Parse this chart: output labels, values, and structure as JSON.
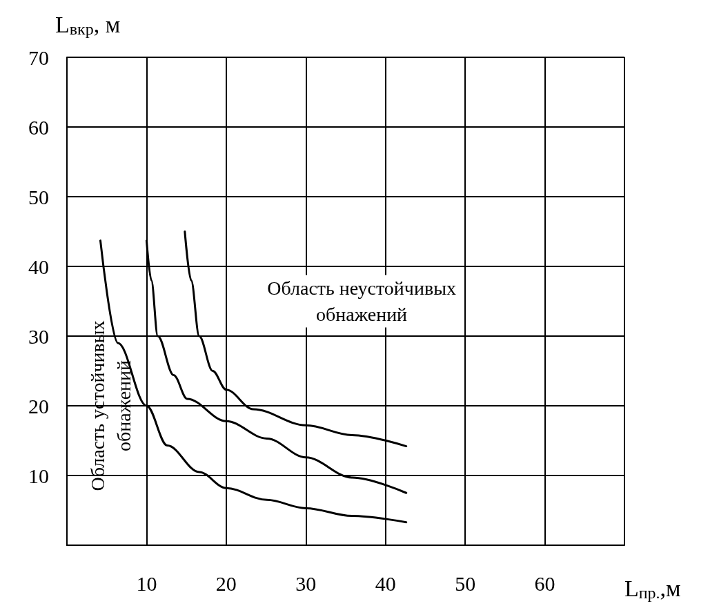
{
  "chart_data": {
    "type": "line",
    "xlabel": "L$_{пр.}$,м",
    "ylabel": "L$_{вкр}$, м",
    "xlim": [
      0,
      70
    ],
    "xticks": [
      {
        "value": 0,
        "label": null
      },
      10,
      20,
      30,
      40,
      50,
      60,
      {
        "value": 70,
        "label": null
      }
    ],
    "ylim": [
      0,
      70
    ],
    "yticks": [
      {
        "value": 0,
        "label": null
      },
      10,
      20,
      30,
      40,
      50,
      60,
      70
    ],
    "grid": true,
    "marker": "none",
    "line_style": "solid",
    "annotations": [
      "Область неустойчивых\nобнажений",
      "Область устойчивых\nобнажений"
    ],
    "series": [
      {
        "color": "#000000",
        "x": [
          4.2,
          6.4,
          10,
          12.6,
          16.6,
          20,
          25.1,
          30,
          35.8,
          42.6
        ],
        "values": [
          43.7,
          29,
          20,
          14.3,
          10.5,
          8.2,
          6.5,
          5.3,
          4.2,
          3.3
        ]
      },
      {
        "color": "#000000",
        "x": [
          10,
          10.6,
          11.4,
          13.4,
          15.1,
          20,
          25.1,
          30,
          35.8,
          42.6
        ],
        "values": [
          43.7,
          38,
          30,
          24.4,
          21,
          17.8,
          15.3,
          12.6,
          9.7,
          7.5
        ]
      },
      {
        "color": "#000000",
        "x": [
          14.8,
          15.6,
          16.6,
          18.3,
          20,
          23.4,
          30,
          35.8,
          42.6
        ],
        "values": [
          45,
          38,
          30,
          25,
          22.3,
          19.5,
          17.2,
          15.8,
          14.2
        ]
      }
    ]
  }
}
